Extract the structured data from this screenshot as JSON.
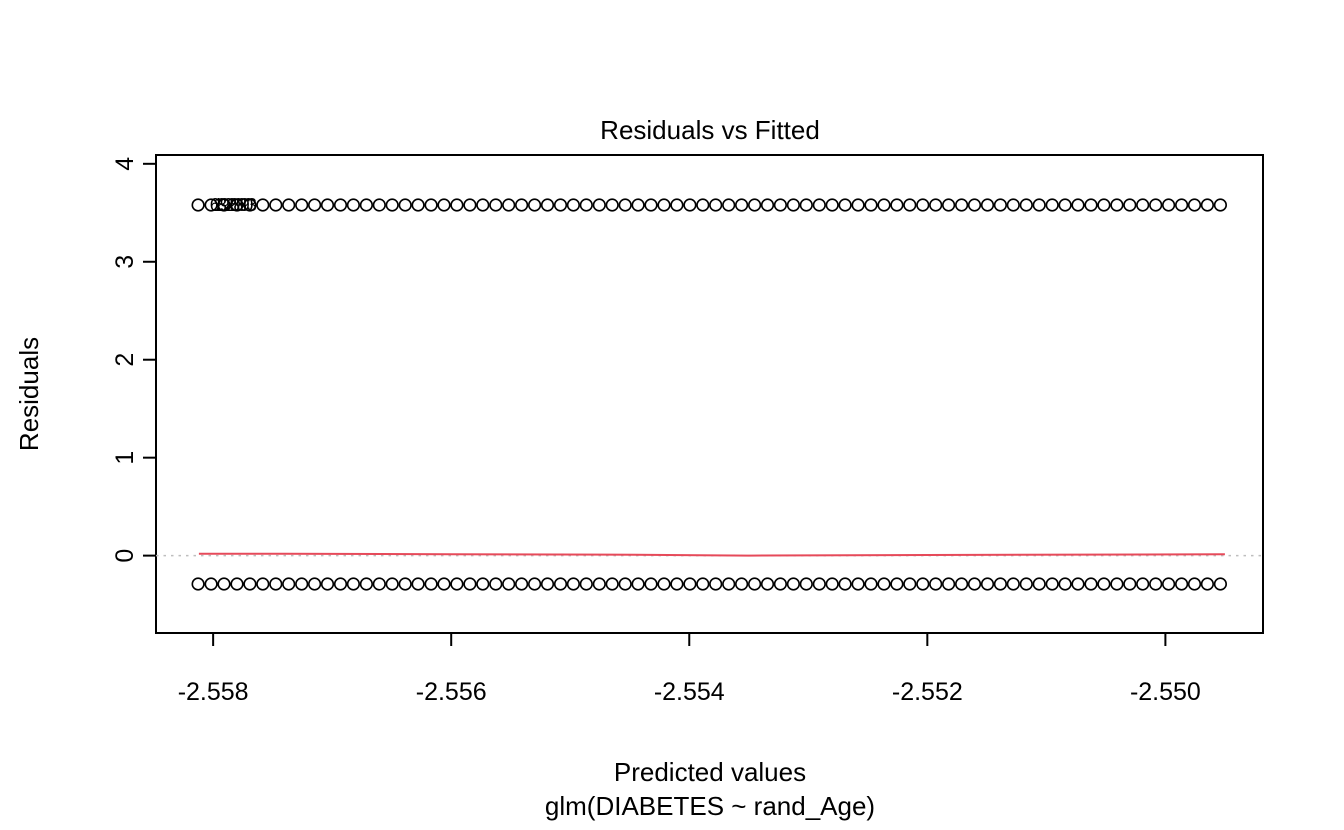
{
  "chart_data": {
    "type": "scatter",
    "title": "Residuals vs Fitted",
    "xlabel": "Predicted values",
    "model_label": "glm(DIABETES ~ rand_Age)",
    "ylabel": "Residuals",
    "xlim": [
      -2.55848,
      -2.54918
    ],
    "ylim": [
      -0.79,
      4.09
    ],
    "grid": false,
    "legend": null,
    "x_ticks": {
      "values": [
        -2.558,
        -2.556,
        -2.554,
        -2.552,
        -2.55
      ],
      "labels": [
        "-2.558",
        "-2.556",
        "-2.554",
        "-2.552",
        "-2.550"
      ]
    },
    "y_ticks": {
      "values": [
        0,
        1,
        2,
        3,
        4
      ],
      "labels": [
        "0",
        "1",
        "2",
        "3",
        "4"
      ]
    },
    "series": [
      {
        "name": "positive-residual-points",
        "marker": "open-circle",
        "color": "#000000",
        "y": 3.58,
        "x_start": -2.558126,
        "x_end": -2.549538,
        "count": 80
      },
      {
        "name": "negative-residual-points",
        "marker": "open-circle",
        "color": "#000000",
        "y": -0.29,
        "x_start": -2.558126,
        "x_end": -2.549538,
        "count": 80
      }
    ],
    "zero_line": {
      "y": 0,
      "style": "dotted",
      "color": "#bebebe"
    },
    "smoother": {
      "name": "lowess-smoother",
      "color": "#e64a5a",
      "points": [
        [
          -2.55812,
          0.02
        ],
        [
          -2.5574,
          0.02
        ],
        [
          -2.556,
          0.013
        ],
        [
          -2.5547,
          0.01
        ],
        [
          -2.5535,
          0.0
        ],
        [
          -2.552,
          0.006
        ],
        [
          -2.5507,
          0.01
        ],
        [
          -2.5495,
          0.013
        ]
      ]
    },
    "point_labels": [
      {
        "label": "6989",
        "x": -2.55786,
        "y": 3.58
      },
      {
        "label": "1280",
        "x": -2.55783,
        "y": 3.58
      },
      {
        "label": "8283",
        "x": -2.5578,
        "y": 3.58
      }
    ]
  }
}
